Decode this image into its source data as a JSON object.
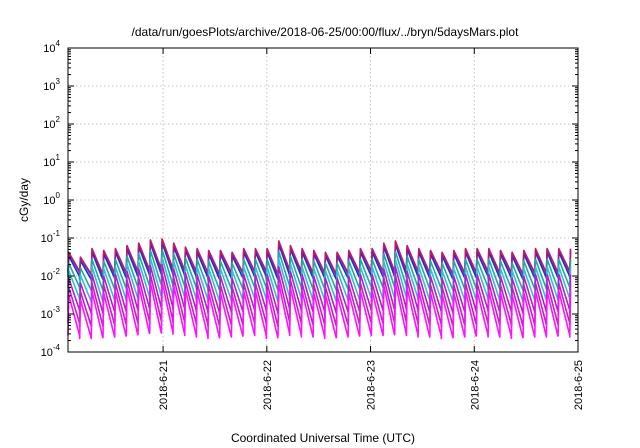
{
  "chart_data": {
    "type": "line",
    "title": "/data/run/goesPlots/archive/2018-06-25/00:00/flux/../bryn/5daysMars.plot",
    "xlabel": "Coordinated Universal Time (UTC)",
    "ylabel": "cGy/day",
    "yscale": "log",
    "ylim": [
      0.0001,
      10000
    ],
    "xlim": [
      "2018-06-20 02:00",
      "2018-06-25 00:00"
    ],
    "grid": true,
    "y_ticks": [
      {
        "base": "10",
        "exp": "-4",
        "value": 0.0001
      },
      {
        "base": "10",
        "exp": "-3",
        "value": 0.001
      },
      {
        "base": "10",
        "exp": "-2",
        "value": 0.01
      },
      {
        "base": "10",
        "exp": "-1",
        "value": 0.1
      },
      {
        "base": "10",
        "exp": "0",
        "value": 1
      },
      {
        "base": "10",
        "exp": "1",
        "value": 10
      },
      {
        "base": "10",
        "exp": "2",
        "value": 100
      },
      {
        "base": "10",
        "exp": "3",
        "value": 1000
      },
      {
        "base": "10",
        "exp": "4",
        "value": 10000
      }
    ],
    "x_ticks": [
      {
        "label": "2018-6-21",
        "value": "2018-06-21 00:00"
      },
      {
        "label": "2018-6-22",
        "value": "2018-06-22 00:00"
      },
      {
        "label": "2018-6-23",
        "value": "2018-06-23 00:00"
      },
      {
        "label": "2018-6-24",
        "value": "2018-06-24 00:00"
      },
      {
        "label": "2018-6-25",
        "value": "2018-06-25 00:00"
      }
    ],
    "cycle_hours": 2.7,
    "sawtooth_peaks": [
      0.04,
      0.03,
      0.05,
      0.045,
      0.05,
      0.06,
      0.07,
      0.085,
      0.09,
      0.07,
      0.055,
      0.05,
      0.045,
      0.045,
      0.04,
      0.05,
      0.05,
      0.05,
      0.08,
      0.06,
      0.05,
      0.045,
      0.04,
      0.04,
      0.045,
      0.05,
      0.05,
      0.07,
      0.08,
      0.06,
      0.05,
      0.045,
      0.04,
      0.045,
      0.05,
      0.05,
      0.05,
      0.045,
      0.04,
      0.045,
      0.05,
      0.05,
      0.05,
      0.05,
      0.045,
      0.045,
      0.05,
      0.05
    ],
    "sawtooth_troughs": [
      0.012,
      0.01,
      0.01,
      0.011,
      0.011,
      0.012,
      0.013,
      0.014,
      0.014,
      0.013,
      0.012,
      0.011,
      0.01,
      0.011,
      0.011,
      0.012,
      0.012,
      0.01,
      0.013,
      0.012,
      0.011,
      0.011,
      0.01,
      0.011,
      0.011,
      0.012,
      0.012,
      0.012,
      0.013,
      0.012,
      0.011,
      0.011,
      0.01,
      0.011,
      0.011,
      0.012,
      0.011,
      0.011,
      0.01,
      0.011,
      0.011,
      0.011,
      0.012,
      0.011,
      0.011,
      0.011,
      0.011,
      0.011
    ],
    "series": [
      {
        "color": "#1f5fd8",
        "scale": 1.0
      },
      {
        "color": "#2a2ad0",
        "scale": 0.85
      },
      {
        "color": "#c0186a",
        "scale": 1.05
      },
      {
        "color": "#1fa8a8",
        "scale": 0.55
      },
      {
        "color": "#30c0d0",
        "scale": 0.35
      },
      {
        "color": "#b020c8",
        "scale": 0.22
      },
      {
        "color": "#c020c0",
        "scale": 0.13
      },
      {
        "color": "#ff10ff",
        "scale": 0.08
      }
    ]
  }
}
